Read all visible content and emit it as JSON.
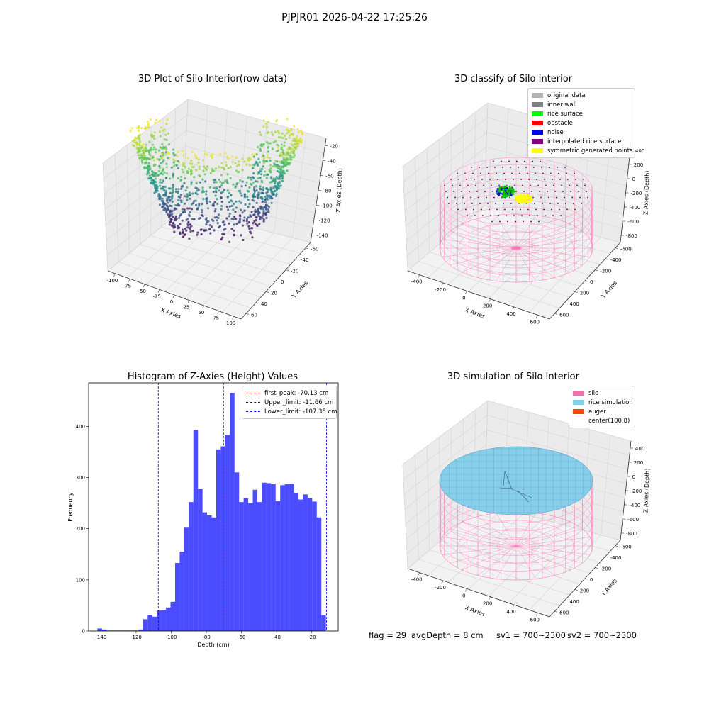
{
  "suptitle": "PJPJR01 2026-04-22 17:25:26",
  "panels": {
    "raw": {
      "title": "3D Plot of Silo Interior(row data)",
      "xlabel": "X Axies",
      "ylabel": "Y Axies",
      "zlabel": "Z Axies (Depth)",
      "xticks": [
        "-100",
        "-75",
        "-50",
        "-25",
        "0",
        "25",
        "50",
        "75",
        "100"
      ],
      "yticks": [
        "-60",
        "-40",
        "-20",
        "0",
        "20",
        "40",
        "60"
      ],
      "zticks": [
        "-20",
        "-40",
        "-60",
        "-80",
        "-100",
        "-120",
        "-140"
      ]
    },
    "classify": {
      "title": "3D classify of Silo Interior",
      "xlabel": "X Axies",
      "ylabel": "Y Axies",
      "zlabel": "Z Axies (Depth)",
      "xticks": [
        "-400",
        "-200",
        "0",
        "200",
        "400",
        "600"
      ],
      "yticks": [
        "-600",
        "-400",
        "-200",
        "0",
        "200",
        "400",
        "600"
      ],
      "zticks": [
        "400",
        "200",
        "0",
        "-200",
        "-400",
        "-600",
        "-800"
      ],
      "legend": [
        {
          "label": "original data",
          "color": "#b3b3b3"
        },
        {
          "label": "inner wall",
          "color": "#808080"
        },
        {
          "label": "rice surface",
          "color": "#00ff00"
        },
        {
          "label": "obstacle",
          "color": "#ff0000"
        },
        {
          "label": "noise",
          "color": "#0000ff"
        },
        {
          "label": "interpolated rice surface",
          "color": "#800080"
        },
        {
          "label": "symmetric generated points",
          "color": "#ffff00"
        }
      ]
    },
    "simulation": {
      "title": "3D simulation of Silo Interior",
      "xlabel": "X Axies",
      "ylabel": "Y Axies",
      "zlabel": "Z Axies (Depth)",
      "xticks": [
        "-400",
        "-200",
        "0",
        "200",
        "400",
        "600"
      ],
      "yticks": [
        "-600",
        "-400",
        "-200",
        "0",
        "200",
        "400",
        "600"
      ],
      "zticks": [
        "400",
        "200",
        "0",
        "-200",
        "-400",
        "-600",
        "-800"
      ],
      "legend": [
        {
          "label": "silo",
          "color": "#ff69b4"
        },
        {
          "label": "rice simulation",
          "color": "#87ceeb"
        },
        {
          "label": "auger",
          "color": "#ff4500"
        },
        {
          "label": "center(100,8)",
          "color": "#ffffff"
        }
      ]
    }
  },
  "chart_data": [
    {
      "type": "scatter",
      "title": "3D Plot of Silo Interior(row data)",
      "xlabel": "X Axies",
      "ylabel": "Y Axies",
      "zlabel": "Z Axies (Depth)",
      "xlim": [
        -110,
        100
      ],
      "ylim": [
        -65,
        65
      ],
      "zlim": [
        -145,
        -10
      ]
    },
    {
      "type": "scatter",
      "title": "3D classify of Silo Interior",
      "xlabel": "X Axies",
      "ylabel": "Y Axies",
      "zlabel": "Z Axies (Depth)",
      "xlim": [
        -500,
        700
      ],
      "ylim": [
        -650,
        650
      ],
      "zlim": [
        -900,
        450
      ]
    },
    {
      "type": "bar",
      "title": "Histogram of Z-Axies (Height) Values",
      "xlabel": "Depth (cm)",
      "ylabel": "Frequency",
      "xlim": [
        -147,
        -5
      ],
      "ylim": [
        0,
        485
      ],
      "xticks": [
        -140,
        -120,
        -100,
        -80,
        -60,
        -40,
        -20
      ],
      "yticks": [
        0,
        100,
        200,
        300,
        400
      ],
      "bin_start": -142.0,
      "bin_width": 2.6,
      "values": [
        5,
        3,
        1,
        1,
        1,
        1,
        1,
        1,
        1,
        3,
        23,
        31,
        28,
        40,
        41,
        46,
        57,
        133,
        155,
        202,
        252,
        393,
        278,
        232,
        226,
        222,
        355,
        361,
        383,
        465,
        310,
        252,
        260,
        250,
        276,
        252,
        290,
        289,
        287,
        254,
        285,
        287,
        288,
        270,
        257,
        267,
        260,
        253,
        222,
        31
      ],
      "color": "#0000ff",
      "vlines": [
        {
          "label": "first_peak: -70.13 cm",
          "x": -70.13,
          "color": "#ff0000"
        },
        {
          "label": "Upper_limit: -11.66 cm",
          "x": -11.66,
          "color": "#0000ff"
        },
        {
          "label": "Lower_limit: -107.35 cm",
          "x": -107.35,
          "color": "#0000ff"
        }
      ]
    },
    {
      "type": "scatter",
      "title": "3D simulation of Silo Interior",
      "xlabel": "X Axies",
      "ylabel": "Y Axies",
      "zlabel": "Z Axies (Depth)",
      "xlim": [
        -500,
        700
      ],
      "ylim": [
        -650,
        650
      ],
      "zlim": [
        -900,
        450
      ]
    }
  ],
  "footer": {
    "flag": "flag = 29",
    "avg_depth": "avgDepth = 8 cm",
    "sv1": "sv1 = 700~2300",
    "sv2": "sv2 = 700~2300"
  }
}
